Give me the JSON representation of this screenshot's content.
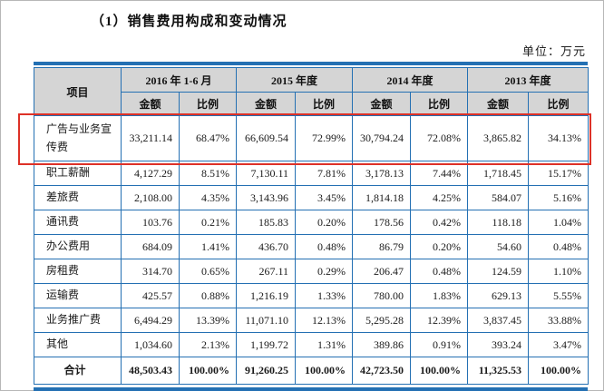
{
  "page": {
    "title": "（1）销售费用构成和变动情况",
    "unit_label": "单位：万元"
  },
  "colors": {
    "table_border_blue": "#2470b3",
    "header_bg_gray": "#d5d5d5",
    "highlight_red": "#dd3127"
  },
  "table": {
    "item_header": "项目",
    "period_headers": [
      "2016 年 1-6 月",
      "2015 年度",
      "2014 年度",
      "2013 年度"
    ],
    "sub_headers": {
      "amount": "金额",
      "ratio": "比例"
    },
    "rows": [
      {
        "item": "广告与业务宣传费",
        "highlighted": true,
        "cells": [
          "33,211.14",
          "68.47%",
          "66,609.54",
          "72.99%",
          "30,794.24",
          "72.08%",
          "3,865.82",
          "34.13%"
        ]
      },
      {
        "item": "职工薪酬",
        "highlighted": false,
        "cells": [
          "4,127.29",
          "8.51%",
          "7,130.11",
          "7.81%",
          "3,178.13",
          "7.44%",
          "1,718.45",
          "15.17%"
        ]
      },
      {
        "item": "差旅费",
        "highlighted": false,
        "cells": [
          "2,108.00",
          "4.35%",
          "3,143.96",
          "3.45%",
          "1,814.18",
          "4.25%",
          "584.07",
          "5.16%"
        ]
      },
      {
        "item": "通讯费",
        "highlighted": false,
        "cells": [
          "103.76",
          "0.21%",
          "185.83",
          "0.20%",
          "178.56",
          "0.42%",
          "118.18",
          "1.04%"
        ]
      },
      {
        "item": "办公费用",
        "highlighted": false,
        "cells": [
          "684.09",
          "1.41%",
          "436.70",
          "0.48%",
          "86.79",
          "0.20%",
          "54.60",
          "0.48%"
        ]
      },
      {
        "item": "房租费",
        "highlighted": false,
        "cells": [
          "314.70",
          "0.65%",
          "267.11",
          "0.29%",
          "206.47",
          "0.48%",
          "124.59",
          "1.10%"
        ]
      },
      {
        "item": "运输费",
        "highlighted": false,
        "cells": [
          "425.57",
          "0.88%",
          "1,216.19",
          "1.33%",
          "780.00",
          "1.83%",
          "629.13",
          "5.55%"
        ]
      },
      {
        "item": "业务推广费",
        "highlighted": false,
        "cells": [
          "6,494.29",
          "13.39%",
          "11,071.10",
          "12.13%",
          "5,295.28",
          "12.39%",
          "3,837.45",
          "33.88%"
        ]
      },
      {
        "item": "其他",
        "highlighted": false,
        "cells": [
          "1,034.60",
          "2.13%",
          "1,199.72",
          "1.31%",
          "389.86",
          "0.91%",
          "393.24",
          "3.47%"
        ]
      }
    ],
    "total_row": {
      "item": "合计",
      "cells": [
        "48,503.43",
        "100.00%",
        "91,260.25",
        "100.00%",
        "42,723.50",
        "100.00%",
        "11,325.53",
        "100.00%"
      ]
    }
  }
}
